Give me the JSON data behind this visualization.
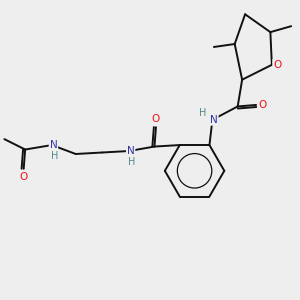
{
  "bg_color": "#eeeeee",
  "atom_colors": {
    "O": "#ee1111",
    "N": "#3333aa",
    "H": "#558888",
    "C": "#111111"
  },
  "bond_color": "#111111",
  "bond_width": 1.4,
  "figsize": [
    3.0,
    3.0
  ],
  "dpi": 100,
  "xlim": [
    0.0,
    10.0
  ],
  "ylim": [
    0.0,
    10.0
  ]
}
